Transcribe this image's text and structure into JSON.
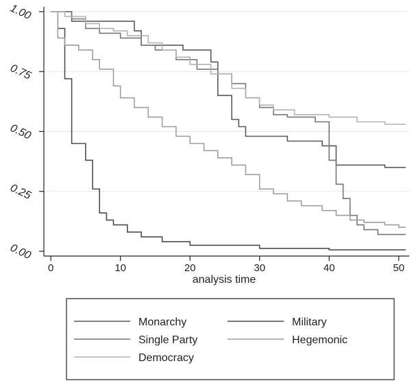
{
  "chart_data": {
    "type": "line",
    "step": true,
    "title": "",
    "xlabel": "analysis time",
    "ylabel": "",
    "xlim": [
      -1,
      51.5
    ],
    "ylim": [
      -0.02,
      1.02
    ],
    "xticks": [
      0,
      10,
      20,
      30,
      40,
      50
    ],
    "xtick_labels": [
      "0",
      "10",
      "20",
      "30",
      "40",
      "50"
    ],
    "yticks": [
      0,
      0.25,
      0.5,
      0.75,
      1
    ],
    "ytick_labels": [
      "0.00",
      "0.25",
      "0.50",
      "0.75",
      "1.00"
    ],
    "grid": "horizontal",
    "legend_position": "bottom",
    "series": [
      {
        "name": "Monarchy",
        "color": "#5a5a5a",
        "points": [
          [
            0,
            1
          ],
          [
            3,
            1
          ],
          [
            3,
            0.96
          ],
          [
            12,
            0.96
          ],
          [
            12,
            0.92
          ],
          [
            13,
            0.92
          ],
          [
            13,
            0.86
          ],
          [
            19,
            0.86
          ],
          [
            19,
            0.84
          ],
          [
            23,
            0.84
          ],
          [
            23,
            0.79
          ],
          [
            24,
            0.79
          ],
          [
            24,
            0.65
          ],
          [
            26,
            0.65
          ],
          [
            26,
            0.55
          ],
          [
            27,
            0.55
          ],
          [
            27,
            0.52
          ],
          [
            28,
            0.52
          ],
          [
            28,
            0.48
          ],
          [
            34,
            0.48
          ],
          [
            34,
            0.46
          ],
          [
            39,
            0.46
          ],
          [
            39,
            0.44
          ],
          [
            41,
            0.44
          ],
          [
            41,
            0.36
          ],
          [
            48,
            0.36
          ],
          [
            48,
            0.35
          ],
          [
            51,
            0.35
          ]
        ]
      },
      {
        "name": "Military",
        "color": "#4e4e4e",
        "points": [
          [
            0,
            1
          ],
          [
            1,
            1
          ],
          [
            1,
            0.93
          ],
          [
            2,
            0.93
          ],
          [
            2,
            0.72
          ],
          [
            3,
            0.72
          ],
          [
            3,
            0.45
          ],
          [
            5,
            0.45
          ],
          [
            5,
            0.38
          ],
          [
            6,
            0.38
          ],
          [
            6,
            0.26
          ],
          [
            7,
            0.26
          ],
          [
            7,
            0.16
          ],
          [
            8,
            0.16
          ],
          [
            8,
            0.13
          ],
          [
            9,
            0.13
          ],
          [
            9,
            0.11
          ],
          [
            11,
            0.11
          ],
          [
            11,
            0.08
          ],
          [
            13,
            0.08
          ],
          [
            13,
            0.06
          ],
          [
            16,
            0.06
          ],
          [
            16,
            0.04
          ],
          [
            20,
            0.04
          ],
          [
            20,
            0.025
          ],
          [
            30,
            0.025
          ],
          [
            30,
            0.012
          ],
          [
            40,
            0.012
          ],
          [
            40,
            0.006
          ],
          [
            51,
            0.006
          ]
        ]
      },
      {
        "name": "Single Party",
        "color": "#767676",
        "points": [
          [
            0,
            1
          ],
          [
            3,
            1
          ],
          [
            3,
            0.97
          ],
          [
            5,
            0.97
          ],
          [
            5,
            0.93
          ],
          [
            7,
            0.93
          ],
          [
            7,
            0.91
          ],
          [
            10,
            0.91
          ],
          [
            10,
            0.89
          ],
          [
            13,
            0.89
          ],
          [
            13,
            0.86
          ],
          [
            15,
            0.86
          ],
          [
            15,
            0.84
          ],
          [
            18,
            0.84
          ],
          [
            18,
            0.8
          ],
          [
            21,
            0.8
          ],
          [
            21,
            0.76
          ],
          [
            24,
            0.76
          ],
          [
            24,
            0.74
          ],
          [
            26,
            0.74
          ],
          [
            26,
            0.7
          ],
          [
            28,
            0.7
          ],
          [
            28,
            0.64
          ],
          [
            30,
            0.64
          ],
          [
            30,
            0.6
          ],
          [
            32,
            0.6
          ],
          [
            32,
            0.57
          ],
          [
            34,
            0.57
          ],
          [
            34,
            0.56
          ],
          [
            38,
            0.56
          ],
          [
            38,
            0.54
          ],
          [
            40,
            0.54
          ],
          [
            40,
            0.38
          ],
          [
            41,
            0.38
          ],
          [
            41,
            0.28
          ],
          [
            42,
            0.28
          ],
          [
            42,
            0.22
          ],
          [
            43,
            0.22
          ],
          [
            43,
            0.15
          ],
          [
            44,
            0.15
          ],
          [
            44,
            0.11
          ],
          [
            45,
            0.11
          ],
          [
            45,
            0.09
          ],
          [
            47,
            0.09
          ],
          [
            47,
            0.07
          ],
          [
            51,
            0.07
          ]
        ]
      },
      {
        "name": "Hegemonic",
        "color": "#9e9e9e",
        "points": [
          [
            0,
            1
          ],
          [
            1,
            1
          ],
          [
            1,
            0.89
          ],
          [
            2,
            0.89
          ],
          [
            2,
            0.86
          ],
          [
            4,
            0.86
          ],
          [
            4,
            0.84
          ],
          [
            6,
            0.84
          ],
          [
            6,
            0.8
          ],
          [
            7,
            0.8
          ],
          [
            7,
            0.76
          ],
          [
            9,
            0.76
          ],
          [
            9,
            0.69
          ],
          [
            10,
            0.69
          ],
          [
            10,
            0.64
          ],
          [
            12,
            0.64
          ],
          [
            12,
            0.6
          ],
          [
            14,
            0.6
          ],
          [
            14,
            0.56
          ],
          [
            16,
            0.56
          ],
          [
            16,
            0.52
          ],
          [
            18,
            0.52
          ],
          [
            18,
            0.48
          ],
          [
            20,
            0.48
          ],
          [
            20,
            0.45
          ],
          [
            22,
            0.45
          ],
          [
            22,
            0.42
          ],
          [
            24,
            0.42
          ],
          [
            24,
            0.39
          ],
          [
            26,
            0.39
          ],
          [
            26,
            0.36
          ],
          [
            28,
            0.36
          ],
          [
            28,
            0.32
          ],
          [
            30,
            0.32
          ],
          [
            30,
            0.26
          ],
          [
            32,
            0.26
          ],
          [
            32,
            0.24
          ],
          [
            34,
            0.24
          ],
          [
            34,
            0.21
          ],
          [
            36,
            0.21
          ],
          [
            36,
            0.19
          ],
          [
            39,
            0.19
          ],
          [
            39,
            0.17
          ],
          [
            41,
            0.17
          ],
          [
            41,
            0.15
          ],
          [
            43,
            0.15
          ],
          [
            43,
            0.13
          ],
          [
            45,
            0.13
          ],
          [
            45,
            0.12
          ],
          [
            48,
            0.12
          ],
          [
            48,
            0.11
          ],
          [
            50,
            0.11
          ],
          [
            50,
            0.1
          ],
          [
            51,
            0.1
          ]
        ]
      },
      {
        "name": "Democracy",
        "color": "#b2b2b2",
        "points": [
          [
            0,
            1
          ],
          [
            2,
            1
          ],
          [
            2,
            0.98
          ],
          [
            5,
            0.98
          ],
          [
            5,
            0.95
          ],
          [
            7,
            0.95
          ],
          [
            7,
            0.93
          ],
          [
            9,
            0.93
          ],
          [
            9,
            0.92
          ],
          [
            11,
            0.92
          ],
          [
            11,
            0.9
          ],
          [
            14,
            0.9
          ],
          [
            14,
            0.87
          ],
          [
            16,
            0.87
          ],
          [
            16,
            0.84
          ],
          [
            18,
            0.84
          ],
          [
            18,
            0.81
          ],
          [
            20,
            0.81
          ],
          [
            20,
            0.78
          ],
          [
            23,
            0.78
          ],
          [
            23,
            0.74
          ],
          [
            26,
            0.74
          ],
          [
            26,
            0.68
          ],
          [
            28,
            0.68
          ],
          [
            28,
            0.64
          ],
          [
            30,
            0.64
          ],
          [
            30,
            0.61
          ],
          [
            32,
            0.61
          ],
          [
            32,
            0.59
          ],
          [
            35,
            0.59
          ],
          [
            35,
            0.57
          ],
          [
            40,
            0.57
          ],
          [
            40,
            0.56
          ],
          [
            44,
            0.56
          ],
          [
            44,
            0.54
          ],
          [
            48,
            0.54
          ],
          [
            48,
            0.53
          ],
          [
            51,
            0.53
          ]
        ]
      }
    ]
  }
}
